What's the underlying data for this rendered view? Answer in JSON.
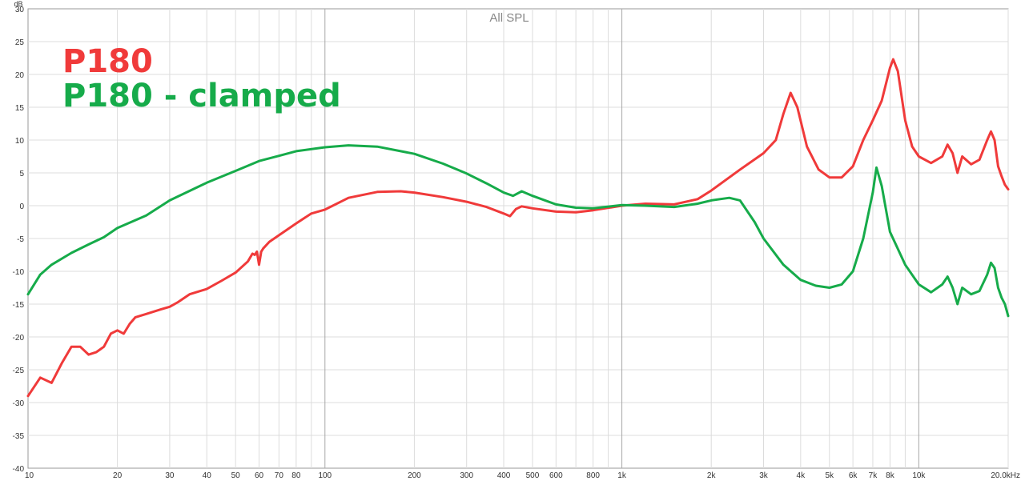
{
  "chart_data": {
    "type": "line",
    "title": "All SPL",
    "ylabel": "dB",
    "x_unit_label": "kHz",
    "xscale": "log",
    "xlim": [
      10,
      20000
    ],
    "ylim": [
      -40,
      30
    ],
    "grid": true,
    "legend_placement": "top-left",
    "y_ticks": [
      30,
      25,
      20,
      15,
      10,
      5,
      0,
      -5,
      -10,
      -15,
      -20,
      -25,
      -30,
      -35,
      -40
    ],
    "y_tick_labels": [
      "30",
      "25",
      "20",
      "15",
      "10",
      "5",
      "0",
      "-5",
      "-10",
      "-15",
      "-20",
      "-25",
      "-30",
      "-35",
      "-40"
    ],
    "x_ticks": [
      10,
      20,
      30,
      40,
      50,
      60,
      70,
      80,
      100,
      200,
      300,
      400,
      500,
      600,
      800,
      1000,
      2000,
      3000,
      4000,
      5000,
      6000,
      7000,
      8000,
      10000,
      20000
    ],
    "x_tick_labels": [
      "10",
      "20",
      "30",
      "40",
      "50",
      "60",
      "70",
      "80",
      "100",
      "200",
      "300",
      "400",
      "500",
      "600",
      "800",
      "1k",
      "2k",
      "3k",
      "4k",
      "5k",
      "6k",
      "7k",
      "8k",
      "10k",
      "20.0kHz"
    ],
    "series": [
      {
        "name": "P180",
        "color": "#f03a3a",
        "points": [
          [
            10,
            -29
          ],
          [
            11,
            -26.2
          ],
          [
            12,
            -27
          ],
          [
            13,
            -24
          ],
          [
            14,
            -21.5
          ],
          [
            15,
            -21.5
          ],
          [
            16,
            -22.7
          ],
          [
            17,
            -22.3
          ],
          [
            18,
            -21.5
          ],
          [
            19,
            -19.5
          ],
          [
            20,
            -19
          ],
          [
            21,
            -19.5
          ],
          [
            22,
            -18
          ],
          [
            23,
            -17
          ],
          [
            25,
            -16.5
          ],
          [
            28,
            -15.8
          ],
          [
            30,
            -15.4
          ],
          [
            32,
            -14.7
          ],
          [
            35,
            -13.5
          ],
          [
            40,
            -12.7
          ],
          [
            45,
            -11.4
          ],
          [
            50,
            -10.2
          ],
          [
            55,
            -8.5
          ],
          [
            57,
            -7.3
          ],
          [
            58,
            -7.5
          ],
          [
            59,
            -7.0
          ],
          [
            60,
            -9.0
          ],
          [
            61,
            -7.0
          ],
          [
            62,
            -6.5
          ],
          [
            65,
            -5.5
          ],
          [
            70,
            -4.5
          ],
          [
            80,
            -2.7
          ],
          [
            90,
            -1.2
          ],
          [
            100,
            -0.6
          ],
          [
            120,
            1.2
          ],
          [
            150,
            2.1
          ],
          [
            180,
            2.2
          ],
          [
            200,
            2.0
          ],
          [
            250,
            1.3
          ],
          [
            300,
            0.6
          ],
          [
            350,
            -0.2
          ],
          [
            400,
            -1.2
          ],
          [
            420,
            -1.6
          ],
          [
            440,
            -0.5
          ],
          [
            460,
            -0.1
          ],
          [
            500,
            -0.4
          ],
          [
            600,
            -0.9
          ],
          [
            700,
            -1.0
          ],
          [
            800,
            -0.7
          ],
          [
            1000,
            0.0
          ],
          [
            1200,
            0.3
          ],
          [
            1500,
            0.2
          ],
          [
            1800,
            1.0
          ],
          [
            2000,
            2.3
          ],
          [
            2500,
            5.5
          ],
          [
            3000,
            8.0
          ],
          [
            3300,
            10
          ],
          [
            3500,
            14
          ],
          [
            3700,
            17.2
          ],
          [
            3900,
            15
          ],
          [
            4200,
            9
          ],
          [
            4600,
            5.5
          ],
          [
            5000,
            4.3
          ],
          [
            5500,
            4.3
          ],
          [
            6000,
            6.0
          ],
          [
            6500,
            10
          ],
          [
            7000,
            13
          ],
          [
            7500,
            16
          ],
          [
            8000,
            21
          ],
          [
            8200,
            22.3
          ],
          [
            8500,
            20.5
          ],
          [
            9000,
            13
          ],
          [
            9500,
            9
          ],
          [
            10000,
            7.5
          ],
          [
            11000,
            6.5
          ],
          [
            12000,
            7.5
          ],
          [
            12500,
            9.3
          ],
          [
            13000,
            8.0
          ],
          [
            13500,
            5.0
          ],
          [
            14000,
            7.5
          ],
          [
            15000,
            6.3
          ],
          [
            16000,
            7.0
          ],
          [
            17000,
            10.0
          ],
          [
            17500,
            11.3
          ],
          [
            18000,
            10
          ],
          [
            18500,
            6.0
          ],
          [
            19000,
            4.5
          ],
          [
            19500,
            3.2
          ],
          [
            20000,
            2.5
          ]
        ]
      },
      {
        "name": "P180 - clamped",
        "color": "#16ab4a",
        "points": [
          [
            10,
            -13.5
          ],
          [
            11,
            -10.5
          ],
          [
            12,
            -9.0
          ],
          [
            14,
            -7.2
          ],
          [
            16,
            -5.9
          ],
          [
            18,
            -4.8
          ],
          [
            20,
            -3.4
          ],
          [
            25,
            -1.5
          ],
          [
            30,
            0.8
          ],
          [
            40,
            3.5
          ],
          [
            50,
            5.3
          ],
          [
            60,
            6.8
          ],
          [
            70,
            7.6
          ],
          [
            80,
            8.3
          ],
          [
            100,
            8.9
          ],
          [
            120,
            9.2
          ],
          [
            150,
            9.0
          ],
          [
            200,
            7.9
          ],
          [
            250,
            6.4
          ],
          [
            300,
            4.9
          ],
          [
            350,
            3.4
          ],
          [
            400,
            2.0
          ],
          [
            430,
            1.5
          ],
          [
            460,
            2.2
          ],
          [
            500,
            1.5
          ],
          [
            600,
            0.2
          ],
          [
            700,
            -0.3
          ],
          [
            800,
            -0.4
          ],
          [
            1000,
            0.1
          ],
          [
            1200,
            0.0
          ],
          [
            1500,
            -0.2
          ],
          [
            1800,
            0.3
          ],
          [
            2000,
            0.8
          ],
          [
            2300,
            1.2
          ],
          [
            2500,
            0.8
          ],
          [
            2800,
            -2.5
          ],
          [
            3000,
            -5.0
          ],
          [
            3500,
            -9.0
          ],
          [
            4000,
            -11.3
          ],
          [
            4500,
            -12.2
          ],
          [
            5000,
            -12.5
          ],
          [
            5500,
            -12.0
          ],
          [
            6000,
            -10.0
          ],
          [
            6500,
            -5.0
          ],
          [
            7000,
            2.0
          ],
          [
            7200,
            5.8
          ],
          [
            7500,
            3.0
          ],
          [
            8000,
            -4.0
          ],
          [
            9000,
            -9.0
          ],
          [
            10000,
            -12.0
          ],
          [
            11000,
            -13.2
          ],
          [
            12000,
            -12.0
          ],
          [
            12500,
            -10.8
          ],
          [
            13000,
            -12.5
          ],
          [
            13500,
            -15.0
          ],
          [
            14000,
            -12.5
          ],
          [
            15000,
            -13.5
          ],
          [
            16000,
            -13.0
          ],
          [
            17000,
            -10.5
          ],
          [
            17500,
            -8.7
          ],
          [
            18000,
            -9.5
          ],
          [
            18500,
            -12.5
          ],
          [
            19000,
            -14.0
          ],
          [
            19500,
            -15.0
          ],
          [
            20000,
            -16.8
          ]
        ]
      }
    ]
  }
}
